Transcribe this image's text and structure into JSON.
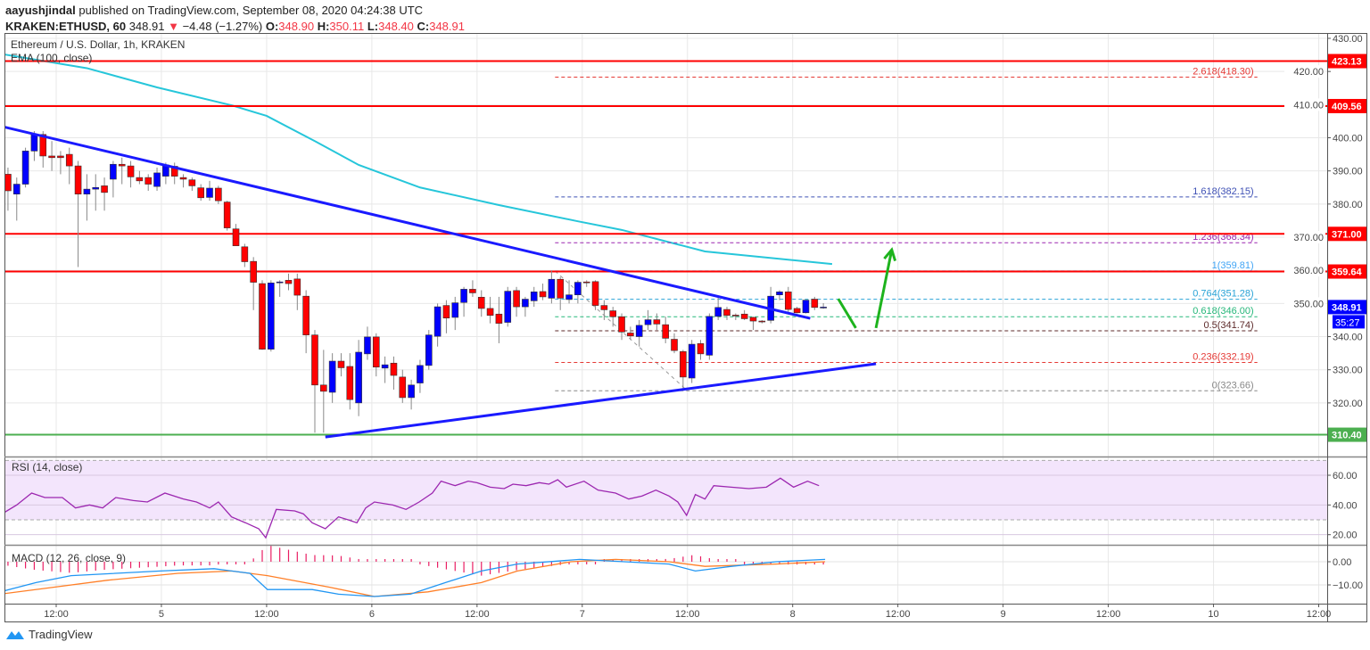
{
  "header": {
    "author": "aayushjindal",
    "published": "published on TradingView.com, September 08, 2020 04:24:38 UTC",
    "symbol": "KRAKEN:ETHUSD, 60",
    "last": "348.91",
    "change": "−4.48 (−1.27%)",
    "o_label": "O:",
    "o": "348.90",
    "h_label": "H:",
    "h": "350.11",
    "l_label": "L:",
    "l": "348.40",
    "c_label": "C:",
    "c": "348.91"
  },
  "legend": {
    "main": "Ethereum / U.S. Dollar, 1h, KRAKEN",
    "ema": "EMA (100, close)",
    "rsi": "RSI (14, close)",
    "macd": "MACD (12, 26, close, 9)"
  },
  "logo_text": "TradingView",
  "colors": {
    "up": "#0000ff",
    "down": "#ff0000",
    "ema": "#26c6da",
    "trend": "#1a1aff",
    "resistance": "#ff0000",
    "support": "#4caf50",
    "rsi": "#9c27b0",
    "macd": "#2196f3",
    "signal": "#ff7f27",
    "hist": "#e91e63",
    "arrow": "#1db31d"
  },
  "chart_data": {
    "type": "candlestick",
    "title": "Ethereum / U.S. Dollar, 1h, KRAKEN",
    "ylim": [
      305,
      432
    ],
    "x_ticks": [
      {
        "h": 0,
        "label": "12:00"
      },
      {
        "h": 12,
        "label": "5"
      },
      {
        "h": 24,
        "label": "12:00"
      },
      {
        "h": 36,
        "label": "6"
      },
      {
        "h": 48,
        "label": "12:00"
      },
      {
        "h": 60,
        "label": "7"
      },
      {
        "h": 72,
        "label": "12:00"
      },
      {
        "h": 84,
        "label": "8"
      },
      {
        "h": 96,
        "label": "12:00"
      },
      {
        "h": 108,
        "label": "9"
      },
      {
        "h": 120,
        "label": "12:00"
      },
      {
        "h": 132,
        "label": "10"
      },
      {
        "h": 144,
        "label": "12:00"
      }
    ],
    "y_ticks": [
      "430.00",
      "420.00",
      "410.00",
      "400.00",
      "390.00",
      "380.00",
      "370.00",
      "360.00",
      "350.00",
      "340.00",
      "330.00",
      "320.00"
    ],
    "candles_ohlc": [
      [
        389,
        391,
        378,
        384
      ],
      [
        383,
        388,
        375,
        386
      ],
      [
        386,
        397,
        385,
        396
      ],
      [
        396,
        402,
        393,
        401
      ],
      [
        401,
        402,
        391,
        394.5
      ],
      [
        394.5,
        399,
        390,
        394
      ],
      [
        394.5,
        396,
        389,
        394
      ],
      [
        395,
        397,
        386,
        391.5
      ],
      [
        391.5,
        393,
        361,
        383
      ],
      [
        383,
        389,
        375,
        384.5
      ],
      [
        384.5,
        389,
        378,
        385
      ],
      [
        385.5,
        388,
        378,
        383.5
      ],
      [
        387.5,
        393,
        382,
        392
      ],
      [
        392,
        394,
        386,
        391.5
      ],
      [
        391.5,
        393,
        385,
        388.2
      ],
      [
        388,
        390,
        386,
        387
      ],
      [
        388,
        389,
        384,
        386
      ],
      [
        385.3,
        391,
        384,
        389.4
      ],
      [
        388.4,
        392.5,
        386,
        391.8
      ],
      [
        391.4,
        392.5,
        386,
        388.4
      ],
      [
        388,
        389,
        385,
        387.5
      ],
      [
        387.3,
        388,
        384,
        385.5
      ],
      [
        384.9,
        386,
        381,
        381.9
      ],
      [
        382,
        387,
        381,
        384.8
      ],
      [
        384.8,
        385.5,
        380,
        381
      ],
      [
        380.6,
        381,
        372,
        372.8
      ],
      [
        372.5,
        374,
        368,
        367.4
      ],
      [
        367.1,
        368,
        361,
        362.6
      ],
      [
        362.7,
        364,
        348,
        356.4
      ],
      [
        356,
        357,
        336,
        336.2
      ],
      [
        336.2,
        357,
        335.5,
        356.2
      ],
      [
        356.3,
        357,
        352,
        356.5
      ],
      [
        357,
        359,
        354,
        356
      ],
      [
        357.4,
        359,
        348,
        352.5
      ],
      [
        352.2,
        354,
        335,
        340.5
      ],
      [
        340.5,
        342,
        311,
        325.4
      ],
      [
        325.4,
        336,
        311,
        323.5
      ],
      [
        323.2,
        335,
        320,
        332.6
      ],
      [
        332.6,
        335,
        328,
        330.6
      ],
      [
        331,
        335,
        318,
        321
      ],
      [
        320,
        339,
        316,
        335.3
      ],
      [
        334.8,
        343,
        333,
        339.9
      ],
      [
        339.9,
        341,
        328,
        330.8
      ],
      [
        330.5,
        334,
        326,
        331.5
      ],
      [
        332,
        334,
        324,
        328.3
      ],
      [
        327.8,
        330,
        320,
        321.6
      ],
      [
        321.6,
        327,
        318,
        325.4
      ],
      [
        326,
        333,
        323,
        331.3
      ],
      [
        331.3,
        342,
        330,
        340.5
      ],
      [
        340.1,
        350,
        337,
        349
      ],
      [
        349.4,
        351,
        341,
        345.6
      ],
      [
        345.8,
        352,
        342,
        350.2
      ],
      [
        350.3,
        355,
        346,
        354.3
      ],
      [
        354.3,
        357,
        352,
        353.2
      ],
      [
        351.9,
        354,
        346,
        348.5
      ],
      [
        348.5,
        352,
        344,
        346.4
      ],
      [
        346.8,
        352,
        338,
        344
      ],
      [
        344.3,
        355,
        343,
        353.7
      ],
      [
        353.9,
        355,
        346,
        349
      ],
      [
        349,
        352,
        346,
        351.3
      ],
      [
        350.8,
        355,
        349,
        353.5
      ],
      [
        353.6,
        356,
        351,
        352
      ],
      [
        351.6,
        360,
        350,
        357.3
      ],
      [
        357.3,
        358,
        348,
        351.6
      ],
      [
        351.2,
        357,
        350,
        352.6
      ],
      [
        352.6,
        357,
        350,
        356.4
      ],
      [
        356.5,
        357,
        355,
        356.3
      ],
      [
        356.6,
        357,
        348,
        349.4
      ],
      [
        349.4,
        351,
        345,
        348.1
      ],
      [
        347.8,
        349,
        343,
        346
      ],
      [
        346,
        347,
        339,
        341.4
      ],
      [
        341.1,
        343,
        339,
        340.2
      ],
      [
        340,
        345,
        337,
        343.4
      ],
      [
        343.6,
        348,
        342,
        345.1
      ],
      [
        345.1,
        347,
        342,
        343.8
      ],
      [
        343.6,
        346,
        338,
        339.5
      ],
      [
        339.2,
        341,
        335,
        335.8
      ],
      [
        335.5,
        336,
        323.7,
        327.8
      ],
      [
        327.5,
        339,
        326,
        337.7
      ],
      [
        337.9,
        339,
        333,
        334.8
      ],
      [
        334.4,
        347,
        333,
        346.1
      ],
      [
        346.1,
        352,
        345,
        348.8
      ],
      [
        348.2,
        349,
        345,
        346.4
      ],
      [
        346.5,
        347,
        345,
        346.3
      ],
      [
        346.8,
        348,
        345,
        345.4
      ],
      [
        345.8,
        346,
        342,
        344.7
      ],
      [
        344.7,
        345,
        344,
        344.6
      ],
      [
        344.9,
        355,
        344,
        352.2
      ],
      [
        352.6,
        354,
        351,
        353.5
      ],
      [
        353.5,
        355,
        347,
        348.2
      ],
      [
        348.5,
        349,
        347,
        347.2
      ],
      [
        347.2,
        351,
        347,
        351
      ],
      [
        351.3,
        352,
        348,
        348.8
      ],
      [
        348.9,
        350.11,
        348.4,
        348.91
      ]
    ],
    "ema100": [
      [
        -1,
        425.4
      ],
      [
        9,
        421
      ],
      [
        17,
        415.2
      ],
      [
        25.5,
        409.8
      ],
      [
        29.5,
        406.6
      ],
      [
        35,
        399
      ],
      [
        40,
        391.8
      ],
      [
        47,
        385
      ],
      [
        56,
        379.7
      ],
      [
        65,
        374.8
      ],
      [
        70,
        372.2
      ],
      [
        79.5,
        365.7
      ],
      [
        94,
        361.9
      ]
    ],
    "horizontal_levels": [
      {
        "value": 423.13,
        "label": "423.13",
        "kind": "resistance"
      },
      {
        "value": 409.56,
        "label": "409.56",
        "kind": "resistance"
      },
      {
        "value": 371.0,
        "label": "371.00",
        "kind": "resistance"
      },
      {
        "value": 359.64,
        "label": "359.64",
        "kind": "resistance"
      },
      {
        "value": 310.4,
        "label": "310.40",
        "kind": "support"
      }
    ],
    "trendlines": [
      {
        "name": "bearish-trend-line",
        "from": [
          -1,
          403.6
        ],
        "to": [
          91.5,
          345.5
        ]
      },
      {
        "name": "support-trend-line",
        "from": [
          36.2,
          309.7
        ],
        "to": [
          99,
          331.8
        ]
      }
    ],
    "fib": {
      "range": [
        62.4,
        142.5
      ],
      "swing": {
        "from": [
          62.4,
          359.81
        ],
        "to": [
          77.5,
          323.66
        ]
      },
      "levels": [
        {
          "value": 418.3,
          "label": "2.618(418.30)",
          "color": "#e53935"
        },
        {
          "value": 382.15,
          "label": "1.618(382.15)",
          "color": "#3f51b5"
        },
        {
          "value": 368.34,
          "label": "1.236(368.34)",
          "color": "#9c27b0"
        },
        {
          "value": 359.81,
          "label": "1(359.81)",
          "color": "#42a5f5"
        },
        {
          "value": 351.28,
          "label": "0.764(351.28)",
          "color": "#29a3d6"
        },
        {
          "value": 346.0,
          "label": "0.618(346.00)",
          "color": "#26b77a"
        },
        {
          "value": 341.74,
          "label": "0.5(341.74)",
          "color": "#5d2a2a"
        },
        {
          "value": 332.19,
          "label": "0.236(332.19)",
          "color": "#e53935"
        },
        {
          "value": 323.66,
          "label": "0(323.66)",
          "color": "#888888"
        }
      ]
    },
    "arrows": [
      {
        "from": [
          94.7,
          351.4
        ],
        "to": [
          96.7,
          342.6
        ],
        "head": false
      },
      {
        "from": [
          99,
          342.6
        ],
        "to": [
          100.8,
          366.2
        ],
        "head": true
      }
    ],
    "last_price_label": "348.91",
    "countdown_label": "35:27",
    "rsi": {
      "ticks": [
        "60.00",
        "40.00",
        "20.00"
      ],
      "band": [
        30,
        70
      ],
      "points": [
        [
          -0.4,
          35
        ],
        [
          1,
          40
        ],
        [
          2.7,
          48
        ],
        [
          4.2,
          45
        ],
        [
          6.2,
          45
        ],
        [
          7.7,
          38
        ],
        [
          9.3,
          40
        ],
        [
          10.8,
          38
        ],
        [
          12.3,
          45
        ],
        [
          14.3,
          43
        ],
        [
          15.9,
          42
        ],
        [
          17.9,
          48
        ],
        [
          20,
          44
        ],
        [
          21.5,
          42
        ],
        [
          23,
          38
        ],
        [
          24,
          42
        ],
        [
          25.5,
          32
        ],
        [
          27.1,
          28
        ],
        [
          28.6,
          24
        ],
        [
          29.4,
          18
        ],
        [
          30.6,
          37
        ],
        [
          32.7,
          36
        ],
        [
          33.7,
          34
        ],
        [
          34.7,
          28
        ],
        [
          36.2,
          24
        ],
        [
          37.7,
          32
        ],
        [
          38.8,
          30
        ],
        [
          39.8,
          28
        ],
        [
          40.8,
          38
        ],
        [
          41.8,
          42
        ],
        [
          43.9,
          40
        ],
        [
          45.4,
          37
        ],
        [
          46.9,
          42
        ],
        [
          48.4,
          48
        ],
        [
          49.4,
          56
        ],
        [
          51,
          53
        ],
        [
          52.5,
          56
        ],
        [
          53.5,
          55
        ],
        [
          55,
          52
        ],
        [
          56.6,
          51
        ],
        [
          57.6,
          54
        ],
        [
          59.1,
          53
        ],
        [
          60.6,
          55
        ],
        [
          61.7,
          54
        ],
        [
          62.7,
          57
        ],
        [
          63.7,
          52
        ],
        [
          65.7,
          56
        ],
        [
          67.3,
          50
        ],
        [
          69.3,
          48
        ],
        [
          70.8,
          44
        ],
        [
          72.3,
          46
        ],
        [
          73.9,
          50
        ],
        [
          75.4,
          46
        ],
        [
          76.4,
          42
        ],
        [
          77.4,
          33
        ],
        [
          78.4,
          47
        ],
        [
          79.5,
          44
        ],
        [
          80.5,
          53
        ],
        [
          82.5,
          52
        ],
        [
          84.5,
          51
        ],
        [
          86.5,
          52
        ],
        [
          88.1,
          58
        ],
        [
          89.6,
          52
        ],
        [
          91.2,
          56
        ],
        [
          92.5,
          53
        ]
      ]
    },
    "macd": {
      "ticks": [
        "0.00",
        "−10.00"
      ],
      "macd_line": [
        [
          -0.9,
          -13
        ],
        [
          3.2,
          -9
        ],
        [
          7.2,
          -6
        ],
        [
          17.4,
          -4
        ],
        [
          23.5,
          -3
        ],
        [
          27.6,
          -5
        ],
        [
          29.6,
          -12
        ],
        [
          34.7,
          -12
        ],
        [
          37.7,
          -14
        ],
        [
          41.8,
          -15
        ],
        [
          45.9,
          -14
        ],
        [
          49.9,
          -9
        ],
        [
          54,
          -4
        ],
        [
          58.1,
          -1
        ],
        [
          65.2,
          1
        ],
        [
          70.3,
          0
        ],
        [
          75.4,
          -1
        ],
        [
          78.4,
          -4
        ],
        [
          82.5,
          -2
        ],
        [
          87.6,
          0
        ],
        [
          93.2,
          1
        ]
      ],
      "signal_line": [
        [
          -0.9,
          -14
        ],
        [
          5.2,
          -11
        ],
        [
          11.3,
          -8
        ],
        [
          19.4,
          -5
        ],
        [
          25.5,
          -4
        ],
        [
          29.6,
          -6
        ],
        [
          36.7,
          -11
        ],
        [
          41.8,
          -15
        ],
        [
          47.9,
          -13
        ],
        [
          54,
          -9
        ],
        [
          58.1,
          -4
        ],
        [
          64.2,
          0
        ],
        [
          69.3,
          1
        ],
        [
          75.4,
          0
        ],
        [
          79.5,
          -2
        ],
        [
          87.6,
          -1
        ],
        [
          93.2,
          0
        ]
      ]
    }
  }
}
